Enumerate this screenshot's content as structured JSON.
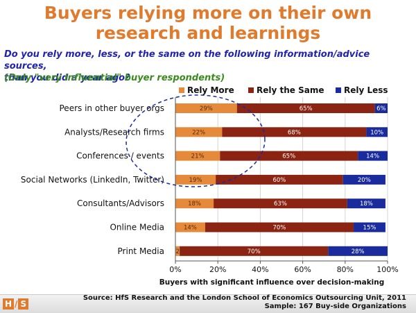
{
  "title_line1": "Buyers relying more on their own",
  "title_line2": "research and learnings",
  "question_line1": "Do you rely more, less, or the same on the following information/advice sources,",
  "question_line2": "than you did a year ago?",
  "note": "(Only \"very influential\" buyer respondents)",
  "source_line1": "Source:  HfS Research and the London School of Economics Outsourcing Unit, 2011",
  "source_line2": "Sample: 167 Buy-side Organizations",
  "logo": {
    "left": "H",
    "sep": "/",
    "right": "S"
  },
  "chart_data": {
    "type": "bar",
    "orientation": "horizontal",
    "stacked": true,
    "xlabel": "Buyers with significant influence over decision-making",
    "xlim": [
      0,
      100
    ],
    "x_ticks": [
      "0%",
      "20%",
      "40%",
      "60%",
      "80%",
      "100%"
    ],
    "legend_position": "top",
    "categories": [
      "Peers in other buyer orgs",
      "Analysts/Research firms",
      "Conferences / events",
      "Social Networks (LinkedIn, Twitter)",
      "Consultants/Advisors",
      "Online Media",
      "Print Media"
    ],
    "series": [
      {
        "name": "Rely More",
        "color": "#e58a3a",
        "values": [
          29,
          22,
          21,
          19,
          18,
          14,
          2
        ]
      },
      {
        "name": "Rely the Same",
        "color": "#8b2412",
        "values": [
          65,
          68,
          65,
          60,
          63,
          70,
          70
        ]
      },
      {
        "name": "Rely Less",
        "color": "#1a2b9e",
        "values": [
          6,
          10,
          14,
          20,
          18,
          15,
          28
        ]
      }
    ],
    "grid": true
  }
}
